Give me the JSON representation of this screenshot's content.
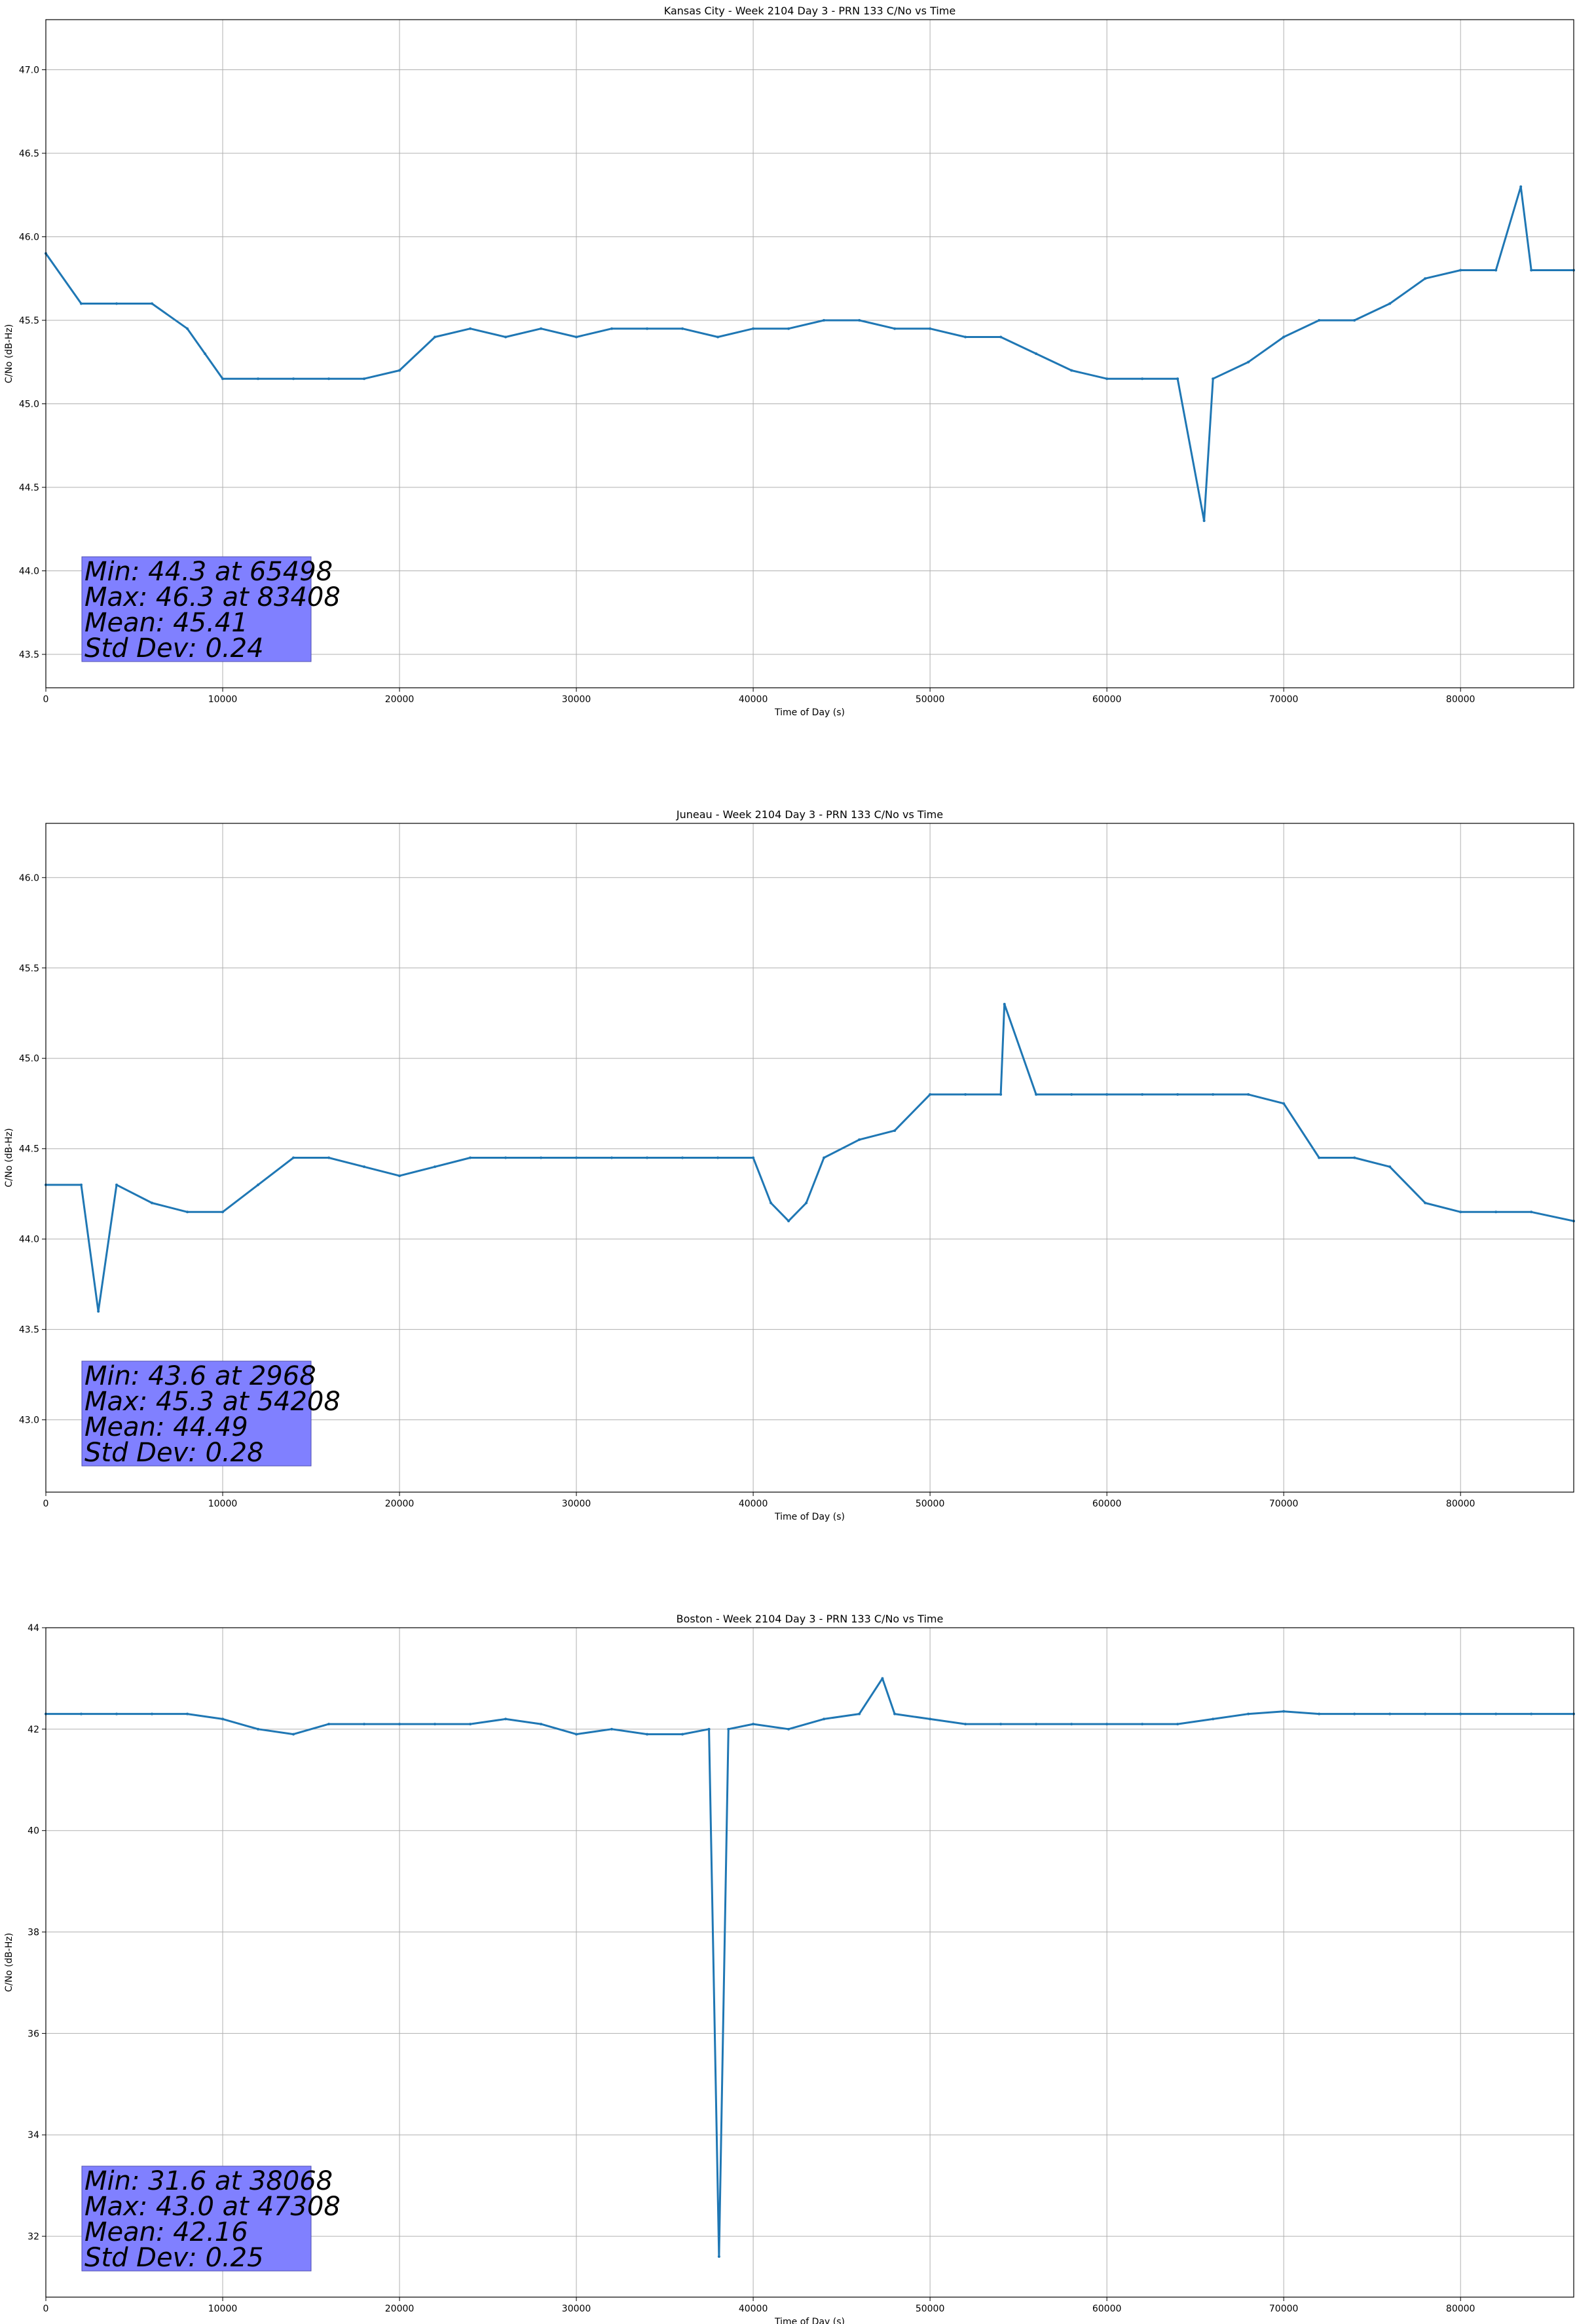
{
  "chart_data": [
    {
      "type": "line",
      "title": "Kansas City - Week 2104 Day 3 - PRN 133 C/No vs Time",
      "xlabel": "Time of Day (s)",
      "ylabel": "C/No (dB-Hz)",
      "xlim": [
        0,
        86400
      ],
      "ylim": [
        43.3,
        47.3
      ],
      "xticks": [
        0,
        10000,
        20000,
        30000,
        40000,
        50000,
        60000,
        70000,
        80000
      ],
      "yticks": [
        43.5,
        44.0,
        44.5,
        45.0,
        45.5,
        46.0,
        46.5,
        47.0
      ],
      "ytick_labels": [
        "43.5",
        "44.0",
        "44.5",
        "45.0",
        "45.5",
        "46.0",
        "46.5",
        "47.0"
      ],
      "grid": true,
      "color": "#1f77b4",
      "series": [
        {
          "x": [
            0,
            2000,
            4000,
            6000,
            8000,
            9000,
            10000,
            12000,
            14000,
            16000,
            18000,
            20000,
            22000,
            24000,
            26000,
            28000,
            30000,
            32000,
            34000,
            36000,
            38000,
            40000,
            42000,
            44000,
            46000,
            48000,
            50000,
            52000,
            54000,
            56000,
            58000,
            60000,
            62000,
            64000,
            65498,
            66000,
            68000,
            70000,
            72000,
            74000,
            76000,
            78000,
            80000,
            82000,
            83408,
            84000,
            86400
          ],
          "y": [
            45.9,
            45.6,
            45.6,
            45.6,
            45.45,
            45.3,
            45.15,
            45.15,
            45.15,
            45.15,
            45.15,
            45.2,
            45.4,
            45.45,
            45.4,
            45.45,
            45.4,
            45.45,
            45.45,
            45.45,
            45.4,
            45.45,
            45.45,
            45.5,
            45.5,
            45.45,
            45.45,
            45.4,
            45.4,
            45.3,
            45.2,
            45.15,
            45.15,
            45.15,
            44.3,
            45.15,
            45.25,
            45.4,
            45.5,
            45.5,
            45.6,
            45.75,
            45.8,
            45.8,
            46.3,
            45.8,
            45.8
          ]
        }
      ],
      "stats": {
        "min": "Min: 44.3 at 65498",
        "max": "Max: 46.3 at 83408",
        "mean": "Mean: 45.41",
        "std": "Std Dev: 0.24"
      }
    },
    {
      "type": "line",
      "title": "Juneau - Week 2104 Day 3 - PRN 133 C/No vs Time",
      "xlabel": "Time of Day (s)",
      "ylabel": "C/No (dB-Hz)",
      "xlim": [
        0,
        86400
      ],
      "ylim": [
        42.6,
        46.3
      ],
      "xticks": [
        0,
        10000,
        20000,
        30000,
        40000,
        50000,
        60000,
        70000,
        80000
      ],
      "yticks": [
        43.0,
        43.5,
        44.0,
        44.5,
        45.0,
        45.5,
        46.0
      ],
      "ytick_labels": [
        "43.0",
        "43.5",
        "44.0",
        "44.5",
        "45.0",
        "45.5",
        "46.0"
      ],
      "grid": true,
      "color": "#1f77b4",
      "series": [
        {
          "x": [
            0,
            2000,
            2968,
            4000,
            6000,
            8000,
            10000,
            12000,
            14000,
            16000,
            18000,
            20000,
            22000,
            24000,
            26000,
            28000,
            30000,
            32000,
            34000,
            36000,
            38000,
            40000,
            41000,
            42000,
            43000,
            44000,
            46000,
            48000,
            50000,
            52000,
            54000,
            54208,
            56000,
            58000,
            60000,
            62000,
            64000,
            66000,
            68000,
            70000,
            72000,
            74000,
            76000,
            78000,
            80000,
            82000,
            84000,
            86400
          ],
          "y": [
            44.3,
            44.3,
            43.6,
            44.3,
            44.2,
            44.15,
            44.15,
            44.3,
            44.45,
            44.45,
            44.4,
            44.35,
            44.4,
            44.45,
            44.45,
            44.45,
            44.45,
            44.45,
            44.45,
            44.45,
            44.45,
            44.45,
            44.2,
            44.1,
            44.2,
            44.45,
            44.55,
            44.6,
            44.8,
            44.8,
            44.8,
            45.3,
            44.8,
            44.8,
            44.8,
            44.8,
            44.8,
            44.8,
            44.8,
            44.75,
            44.45,
            44.45,
            44.4,
            44.2,
            44.15,
            44.15,
            44.15,
            44.1
          ]
        }
      ],
      "stats": {
        "min": "Min: 43.6 at 2968",
        "max": "Max: 45.3 at 54208",
        "mean": "Mean: 44.49",
        "std": "Std Dev: 0.28"
      }
    },
    {
      "type": "line",
      "title": "Boston - Week 2104 Day 3 - PRN 133 C/No vs Time",
      "xlabel": "Time of Day (s)",
      "ylabel": "C/No (dB-Hz)",
      "xlim": [
        0,
        86400
      ],
      "ylim": [
        30.8,
        44
      ],
      "xticks": [
        0,
        10000,
        20000,
        30000,
        40000,
        50000,
        60000,
        70000,
        80000
      ],
      "yticks": [
        32,
        34,
        36,
        38,
        40,
        42,
        44
      ],
      "ytick_labels": [
        "32",
        "34",
        "36",
        "38",
        "40",
        "42",
        "44"
      ],
      "grid": true,
      "color": "#1f77b4",
      "series": [
        {
          "x": [
            0,
            2000,
            4000,
            6000,
            8000,
            10000,
            12000,
            14000,
            16000,
            18000,
            20000,
            22000,
            24000,
            26000,
            28000,
            30000,
            32000,
            34000,
            36000,
            37500,
            38068,
            38600,
            40000,
            42000,
            44000,
            46000,
            47308,
            48000,
            50000,
            52000,
            54000,
            56000,
            58000,
            60000,
            62000,
            64000,
            66000,
            68000,
            70000,
            72000,
            74000,
            76000,
            78000,
            80000,
            82000,
            84000,
            86400
          ],
          "y": [
            42.3,
            42.3,
            42.3,
            42.3,
            42.3,
            42.2,
            42.0,
            41.9,
            42.1,
            42.1,
            42.1,
            42.1,
            42.1,
            42.2,
            42.1,
            41.9,
            42.0,
            41.9,
            41.9,
            42.0,
            31.6,
            42.0,
            42.1,
            42.0,
            42.2,
            42.3,
            43.0,
            42.3,
            42.2,
            42.1,
            42.1,
            42.1,
            42.1,
            42.1,
            42.1,
            42.1,
            42.2,
            42.3,
            42.35,
            42.3,
            42.3,
            42.3,
            42.3,
            42.3,
            42.3,
            42.3,
            42.3
          ]
        }
      ],
      "stats": {
        "min": "Min: 31.6 at 38068",
        "max": "Max: 43.0 at 47308",
        "mean": "Mean: 42.16",
        "std": "Std Dev: 0.25"
      }
    }
  ],
  "colors": {
    "series": "#1f77b4",
    "stats_box": "#8080ff",
    "grid": "#b0b0b0"
  }
}
